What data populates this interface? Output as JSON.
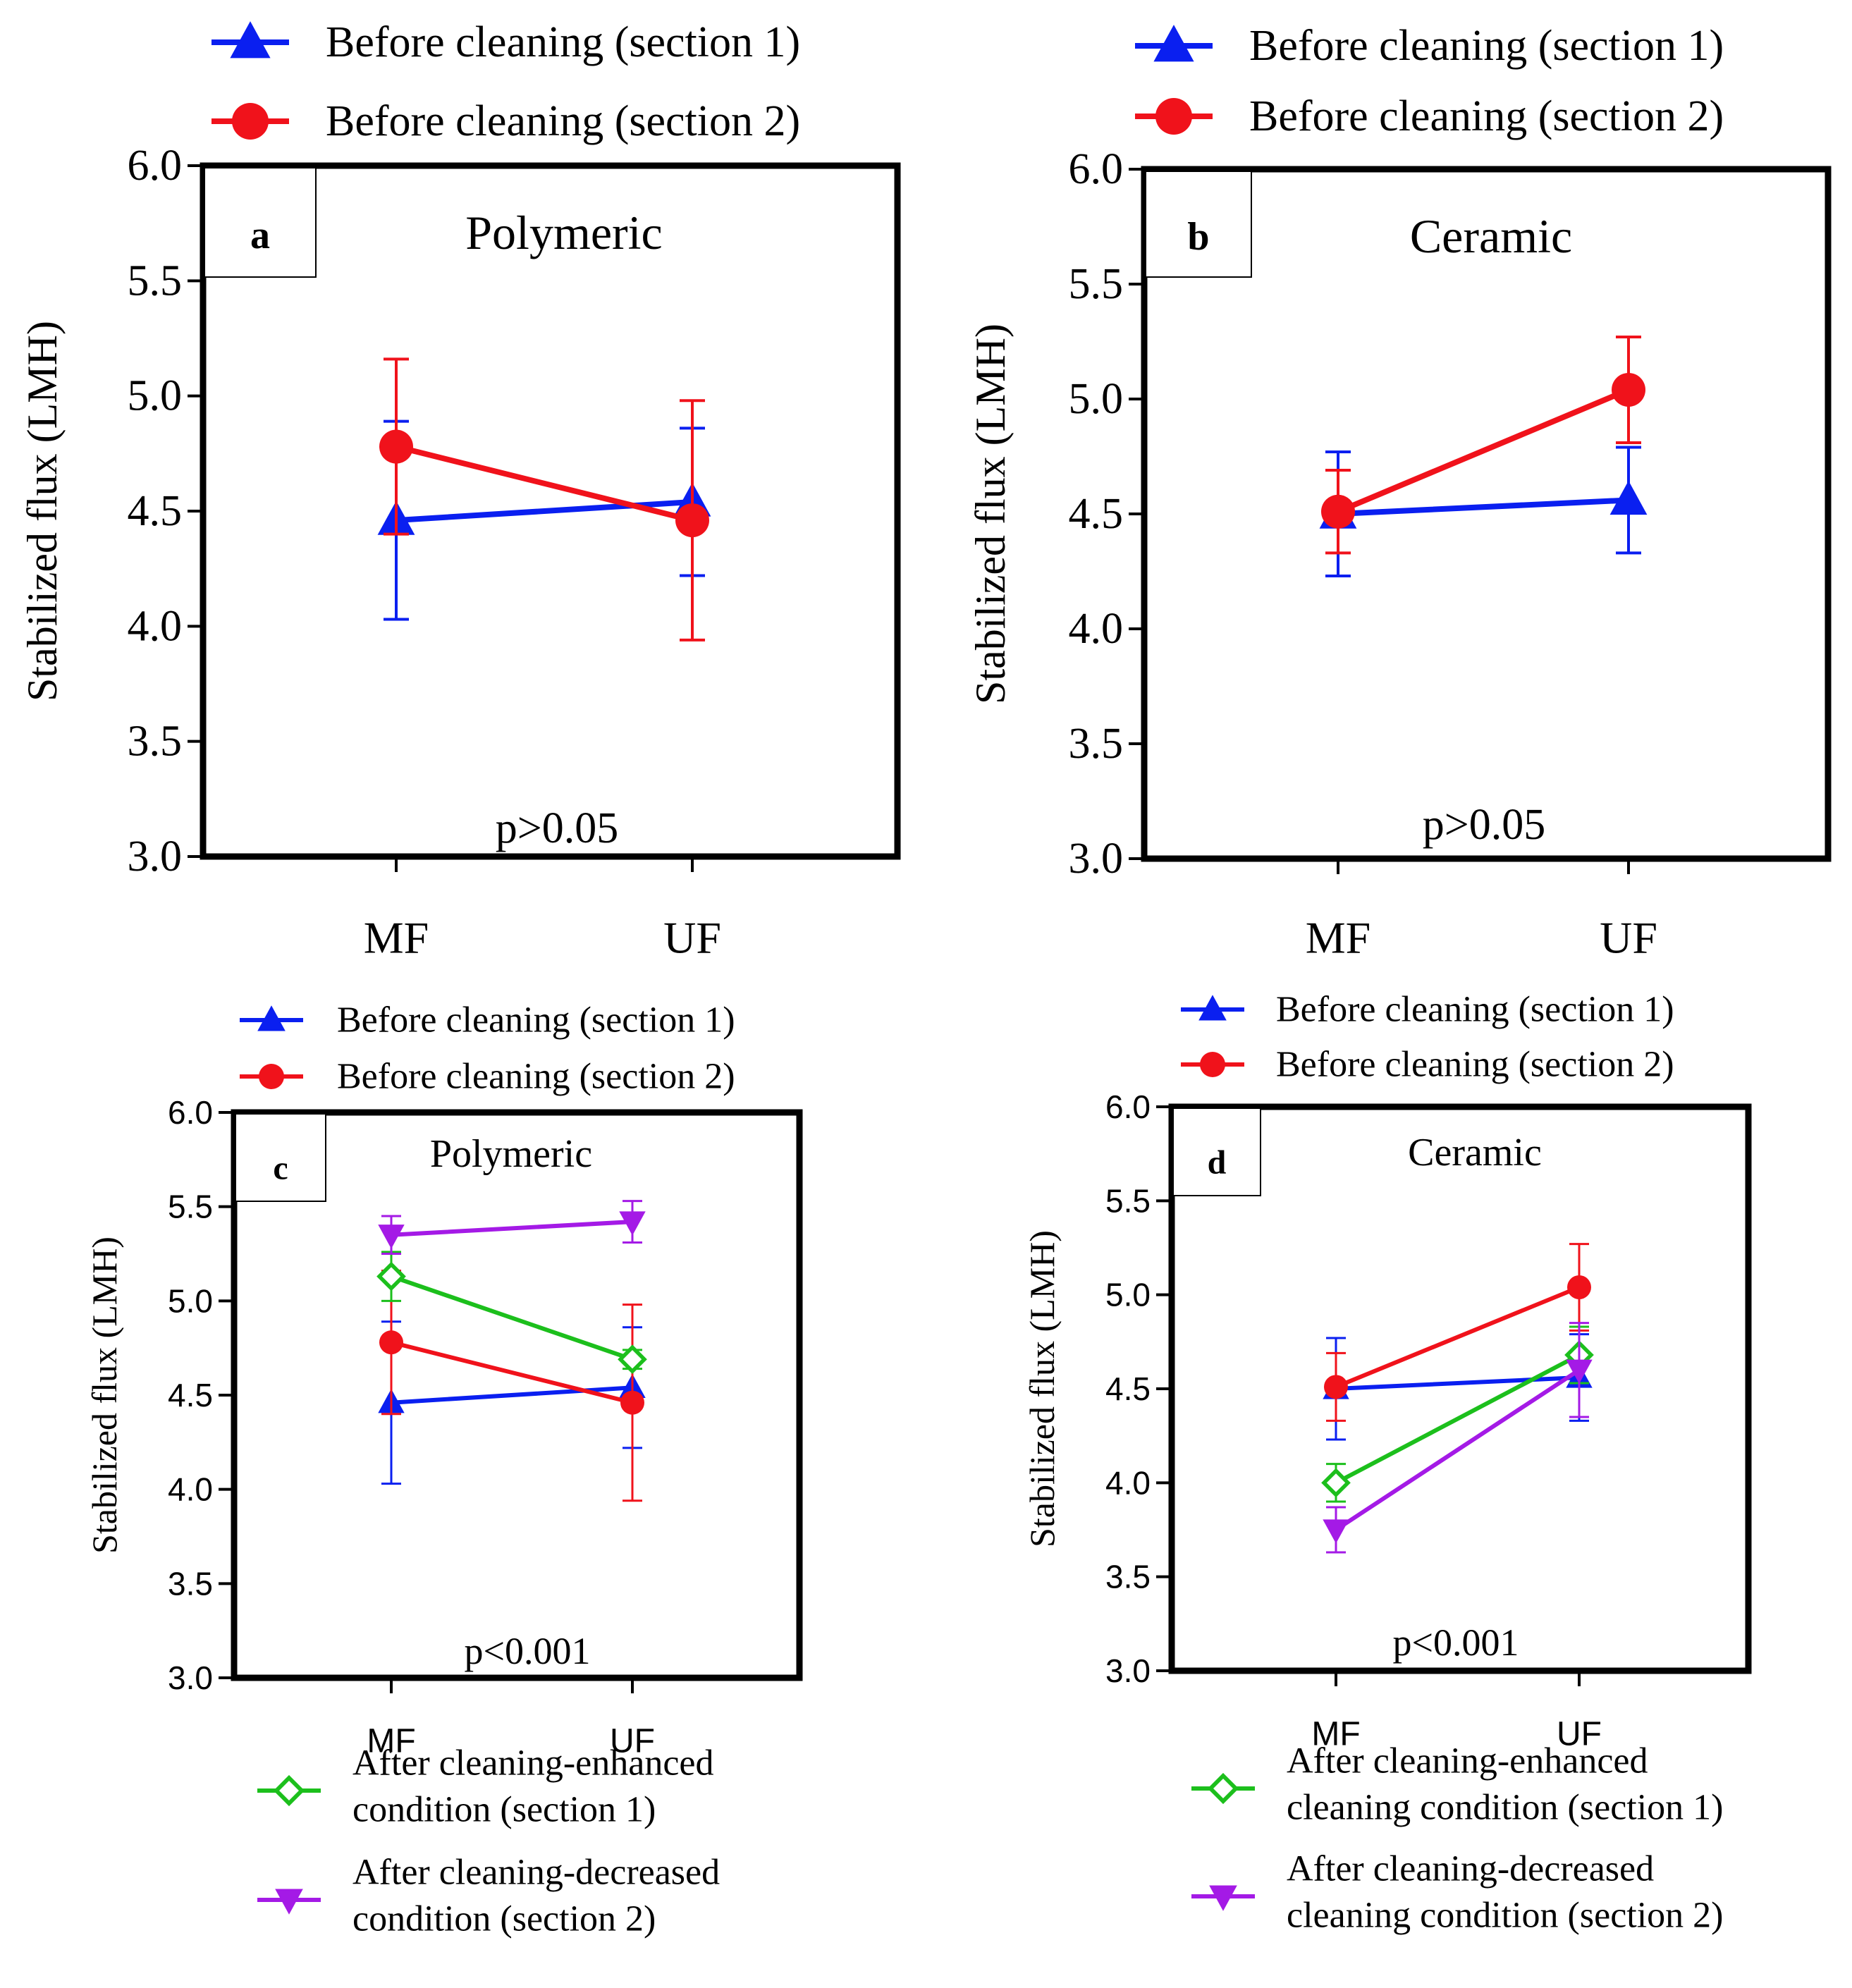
{
  "colors": {
    "blue": "#0a1ff0",
    "red": "#f0121b",
    "green": "#1cbf1c",
    "purple": "#a41ae6",
    "frame": "#000000"
  },
  "chart_data": [
    {
      "id": "a",
      "type": "line",
      "panel_label": "a",
      "title": "Polymeric",
      "ylabel": "Stabilized flux (LMH)",
      "xlabel": "",
      "categories": [
        "MF",
        "UF"
      ],
      "ylim": [
        3.0,
        6.0
      ],
      "yticks": [
        "3.0",
        "3.5",
        "4.0",
        "4.5",
        "5.0",
        "5.5",
        "6.0"
      ],
      "annotation": "p>0.05",
      "legend_position": "top",
      "legend_top": [
        "Before cleaning (section 1)",
        "Before cleaning (section 2)"
      ],
      "legend_bottom": [],
      "series": [
        {
          "name": "Before cleaning (section 1)",
          "color_key": "blue",
          "marker": "triangle-up",
          "values": [
            4.46,
            4.54
          ],
          "errors": [
            0.43,
            0.32
          ]
        },
        {
          "name": "Before cleaning (section 2)",
          "color_key": "red",
          "marker": "circle",
          "values": [
            4.78,
            4.46
          ],
          "errors": [
            0.38,
            0.52
          ]
        }
      ]
    },
    {
      "id": "b",
      "type": "line",
      "panel_label": "b",
      "title": "Ceramic",
      "ylabel": "Stabilized flux (LMH)",
      "xlabel": "",
      "categories": [
        "MF",
        "UF"
      ],
      "ylim": [
        3.0,
        6.0
      ],
      "yticks": [
        "3.0",
        "3.5",
        "4.0",
        "4.5",
        "5.0",
        "5.5",
        "6.0"
      ],
      "annotation": "p>0.05",
      "legend_position": "top",
      "legend_top": [
        "Before cleaning (section 1)",
        "Before cleaning (section 2)"
      ],
      "legend_bottom": [],
      "series": [
        {
          "name": "Before cleaning (section 1)",
          "color_key": "blue",
          "marker": "triangle-up",
          "values": [
            4.5,
            4.56
          ],
          "errors": [
            0.27,
            0.23
          ]
        },
        {
          "name": "Before cleaning (section 2)",
          "color_key": "red",
          "marker": "circle",
          "values": [
            4.51,
            5.04
          ],
          "errors": [
            0.18,
            0.23
          ]
        }
      ]
    },
    {
      "id": "c",
      "type": "line",
      "panel_label": "c",
      "title": "Polymeric",
      "ylabel": "Stabilized flux (LMH)",
      "xlabel": "",
      "categories": [
        "MF",
        "UF"
      ],
      "ylim": [
        3.0,
        6.0
      ],
      "yticks": [
        "3.0",
        "3.5",
        "4.0",
        "4.5",
        "5.0",
        "5.5",
        "6.0"
      ],
      "annotation": "p<0.001",
      "legend_position": "top and bottom",
      "legend_top": [
        "Before cleaning (section 1)",
        "Before cleaning (section 2)"
      ],
      "legend_bottom": [
        {
          "line1": "After cleaning-enhanced",
          "line2": "condition (section 1)"
        },
        {
          "line1": "After cleaning-decreased",
          "line2": "condition (section 2)"
        }
      ],
      "series": [
        {
          "name": "Before cleaning (section 1)",
          "color_key": "blue",
          "marker": "triangle-up",
          "values": [
            4.46,
            4.54
          ],
          "errors": [
            0.43,
            0.32
          ]
        },
        {
          "name": "Before cleaning (section 2)",
          "color_key": "red",
          "marker": "circle",
          "values": [
            4.78,
            4.46
          ],
          "errors": [
            0.38,
            0.52
          ]
        },
        {
          "name": "After cleaning-enhanced condition (section 1)",
          "color_key": "green",
          "marker": "diamond-open",
          "values": [
            5.13,
            4.69
          ],
          "errors": [
            0.13,
            0.05
          ]
        },
        {
          "name": "After cleaning-decreased condition (section 2)",
          "color_key": "purple",
          "marker": "triangle-down",
          "values": [
            5.35,
            5.42
          ],
          "errors": [
            0.1,
            0.11
          ]
        }
      ]
    },
    {
      "id": "d",
      "type": "line",
      "panel_label": "d",
      "title": "Ceramic",
      "ylabel": "Stabilized flux (LMH)",
      "xlabel": "",
      "categories": [
        "MF",
        "UF"
      ],
      "ylim": [
        3.0,
        6.0
      ],
      "yticks": [
        "3.0",
        "3.5",
        "4.0",
        "4.5",
        "5.0",
        "5.5",
        "6.0"
      ],
      "annotation": "p<0.001",
      "legend_position": "top and bottom",
      "legend_top": [
        "Before cleaning (section 1)",
        "Before cleaning (section 2)"
      ],
      "legend_bottom": [
        {
          "line1": "After cleaning-enhanced",
          "line2": "cleaning condition (section 1)"
        },
        {
          "line1": "After cleaning-decreased",
          "line2": "cleaning condition (section 2)"
        }
      ],
      "series": [
        {
          "name": "Before cleaning (section 1)",
          "color_key": "blue",
          "marker": "triangle-up",
          "values": [
            4.5,
            4.56
          ],
          "errors": [
            0.27,
            0.23
          ]
        },
        {
          "name": "Before cleaning (section 2)",
          "color_key": "red",
          "marker": "circle",
          "values": [
            4.51,
            5.04
          ],
          "errors": [
            0.18,
            0.23
          ]
        },
        {
          "name": "After cleaning-enhanced cleaning condition (section 1)",
          "color_key": "green",
          "marker": "diamond-open",
          "values": [
            4.0,
            4.68
          ],
          "errors": [
            0.1,
            0.15
          ]
        },
        {
          "name": "After cleaning-decreased cleaning condition (section 2)",
          "color_key": "purple",
          "marker": "triangle-down",
          "values": [
            3.75,
            4.6
          ],
          "errors": [
            0.12,
            0.25
          ]
        }
      ]
    }
  ]
}
